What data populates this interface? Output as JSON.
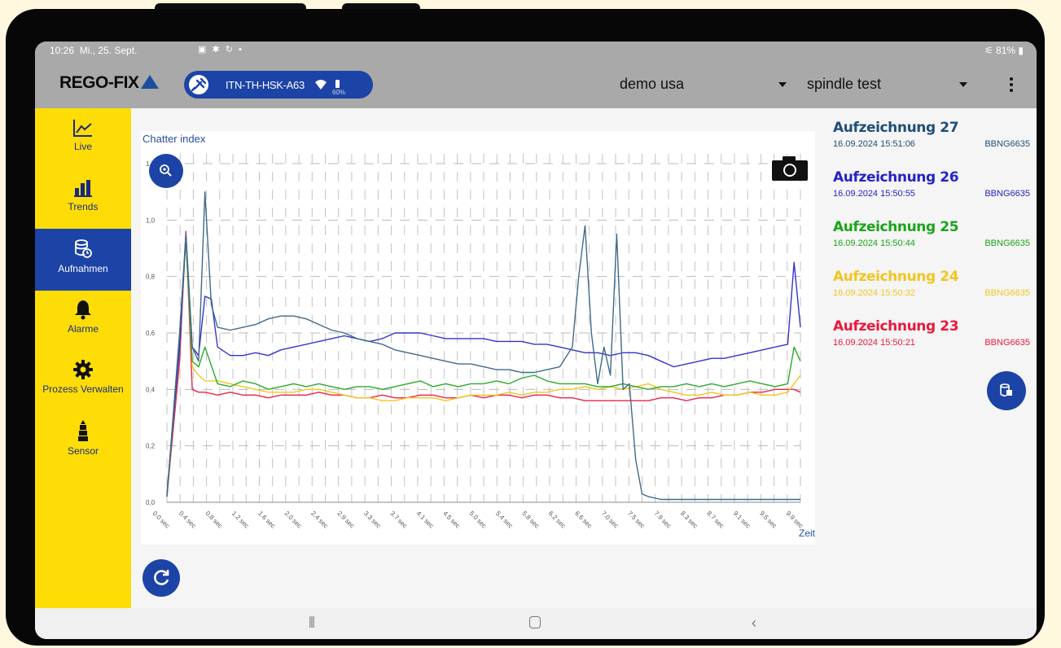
{
  "status_bar": {
    "time": "10:26",
    "date": "Mi., 25. Sept.",
    "right": "81%"
  },
  "app_bar": {
    "logo": "REGO-FIX",
    "device_name": "ITN-TH-HSK-A63",
    "battery_level": "60%",
    "dropdown_1": "demo usa",
    "dropdown_2": "spindle test"
  },
  "sidebar": {
    "items": [
      {
        "label": "Live",
        "icon": "line-chart-icon",
        "active": false
      },
      {
        "label": "Trends",
        "icon": "bar-chart-icon",
        "active": false
      },
      {
        "label": "Aufnahmen",
        "icon": "database-clock-icon",
        "active": true
      },
      {
        "label": "Alarme",
        "icon": "bell-icon",
        "active": false
      },
      {
        "label": "Prozess Verwalten",
        "icon": "gear-icon",
        "active": false
      },
      {
        "label": "Sensor",
        "icon": "sensor-icon",
        "active": false
      }
    ]
  },
  "recordings": [
    {
      "name": "Aufzeichnung 27",
      "date": "16.09.2024 15:51:06",
      "id": "BBNG6635",
      "color": "#1f4e79"
    },
    {
      "name": "Aufzeichnung 26",
      "date": "16.09.2024 15:50:55",
      "id": "BBNG6635",
      "color": "#2323c8"
    },
    {
      "name": "Aufzeichnung 25",
      "date": "16.09.2024 15:50:44",
      "id": "BBNG6635",
      "color": "#1aa41a"
    },
    {
      "name": "Aufzeichnung 24",
      "date": "16.09.2024 15:50:32",
      "id": "BBNG6635",
      "color": "#f2c61e"
    },
    {
      "name": "Aufzeichnung 23",
      "date": "16.09.2024 15:50:21",
      "id": "BBNG6635",
      "color": "#e8193c"
    }
  ],
  "chart_data": {
    "type": "line",
    "title": "Chatter index",
    "xlabel": "Zeit",
    "ylabel": "",
    "ylim": [
      0,
      1.2
    ],
    "yticks": [
      "0,0",
      "0,2",
      "0,4",
      "0,6",
      "0,8",
      "1,0",
      "1,2"
    ],
    "x_ticks": [
      "0.0 sec",
      "0.4 sec",
      "0.8 sec",
      "1.2 sec",
      "1.6 sec",
      "2.0 sec",
      "2.4 sec",
      "2.9 sec",
      "3.3 sec",
      "3.7 sec",
      "4.1 sec",
      "4.5 sec",
      "5.0 sec",
      "5.4 sec",
      "5.8 sec",
      "6.2 sec",
      "6.6 sec",
      "7.0 sec",
      "7.5 sec",
      "7.9 sec",
      "8.3 sec",
      "8.7 sec",
      "9.1 sec",
      "9.5 sec",
      "9.9 sec"
    ],
    "xlim": [
      0,
      10
    ],
    "grid": true,
    "series": [
      {
        "name": "Aufzeichnung 27",
        "color": "#3f6a8a",
        "x": [
          0,
          0.2,
          0.3,
          0.4,
          0.5,
          0.6,
          0.7,
          0.8,
          1.0,
          1.2,
          1.4,
          1.6,
          1.8,
          2.0,
          2.2,
          2.4,
          2.6,
          2.8,
          3.0,
          3.2,
          3.4,
          3.6,
          3.8,
          4.0,
          4.2,
          4.4,
          4.6,
          4.8,
          5.0,
          5.2,
          5.4,
          5.6,
          5.8,
          6.0,
          6.2,
          6.4,
          6.5,
          6.6,
          6.7,
          6.8,
          6.9,
          7.0,
          7.1,
          7.2,
          7.3,
          7.4,
          7.5,
          7.6,
          7.8,
          8.0,
          8.5,
          9.0,
          9.5,
          9.9,
          10
        ],
        "y": [
          0.02,
          0.6,
          0.95,
          0.55,
          0.5,
          1.1,
          0.7,
          0.62,
          0.61,
          0.62,
          0.63,
          0.65,
          0.66,
          0.66,
          0.65,
          0.63,
          0.61,
          0.6,
          0.58,
          0.57,
          0.56,
          0.54,
          0.53,
          0.52,
          0.51,
          0.5,
          0.49,
          0.49,
          0.48,
          0.47,
          0.47,
          0.46,
          0.46,
          0.47,
          0.48,
          0.55,
          0.8,
          0.98,
          0.6,
          0.42,
          0.55,
          0.45,
          0.95,
          0.4,
          0.42,
          0.15,
          0.03,
          0.02,
          0.01,
          0.01,
          0.01,
          0.01,
          0.01,
          0.01,
          0.01
        ]
      },
      {
        "name": "Aufzeichnung 26",
        "color": "#3434cc",
        "x": [
          0,
          0.2,
          0.3,
          0.4,
          0.5,
          0.6,
          0.7,
          0.8,
          1.0,
          1.2,
          1.4,
          1.6,
          1.8,
          2.0,
          2.2,
          2.4,
          2.6,
          2.8,
          3.0,
          3.2,
          3.4,
          3.6,
          3.8,
          4.0,
          4.2,
          4.4,
          4.6,
          4.8,
          5.0,
          5.2,
          5.4,
          5.6,
          5.8,
          6.0,
          6.2,
          6.4,
          6.6,
          6.8,
          7.0,
          7.2,
          7.4,
          7.6,
          7.8,
          8.0,
          8.2,
          8.4,
          8.6,
          8.8,
          9.0,
          9.2,
          9.4,
          9.6,
          9.8,
          9.9,
          10
        ],
        "y": [
          0.03,
          0.55,
          0.95,
          0.55,
          0.52,
          0.73,
          0.72,
          0.55,
          0.52,
          0.52,
          0.53,
          0.52,
          0.54,
          0.55,
          0.56,
          0.57,
          0.58,
          0.59,
          0.58,
          0.57,
          0.58,
          0.6,
          0.6,
          0.6,
          0.59,
          0.58,
          0.58,
          0.58,
          0.58,
          0.57,
          0.57,
          0.57,
          0.56,
          0.56,
          0.55,
          0.54,
          0.53,
          0.53,
          0.52,
          0.53,
          0.53,
          0.52,
          0.5,
          0.48,
          0.49,
          0.5,
          0.51,
          0.51,
          0.52,
          0.53,
          0.54,
          0.55,
          0.56,
          0.85,
          0.62
        ]
      },
      {
        "name": "Aufzeichnung 25",
        "color": "#2aaa2a",
        "x": [
          0,
          0.2,
          0.3,
          0.4,
          0.5,
          0.6,
          0.8,
          1.0,
          1.2,
          1.4,
          1.6,
          1.8,
          2.0,
          2.2,
          2.4,
          2.6,
          2.8,
          3.0,
          3.2,
          3.4,
          3.6,
          3.8,
          4.0,
          4.2,
          4.4,
          4.6,
          4.8,
          5.0,
          5.2,
          5.4,
          5.6,
          5.8,
          6.0,
          6.2,
          6.4,
          6.6,
          6.8,
          7.0,
          7.2,
          7.4,
          7.6,
          7.8,
          8.0,
          8.2,
          8.4,
          8.6,
          8.8,
          9.0,
          9.2,
          9.4,
          9.6,
          9.8,
          9.9,
          10
        ],
        "y": [
          0.02,
          0.6,
          0.93,
          0.5,
          0.48,
          0.55,
          0.42,
          0.41,
          0.43,
          0.42,
          0.4,
          0.41,
          0.42,
          0.41,
          0.42,
          0.41,
          0.4,
          0.41,
          0.41,
          0.4,
          0.41,
          0.42,
          0.43,
          0.41,
          0.42,
          0.41,
          0.42,
          0.42,
          0.43,
          0.42,
          0.44,
          0.45,
          0.43,
          0.42,
          0.42,
          0.42,
          0.41,
          0.41,
          0.42,
          0.41,
          0.4,
          0.41,
          0.41,
          0.42,
          0.41,
          0.42,
          0.41,
          0.42,
          0.43,
          0.42,
          0.41,
          0.42,
          0.55,
          0.5
        ]
      },
      {
        "name": "Aufzeichnung 24",
        "color": "#f2c61e",
        "x": [
          0,
          0.2,
          0.3,
          0.4,
          0.5,
          0.6,
          0.8,
          1.0,
          1.2,
          1.4,
          1.6,
          1.8,
          2.0,
          2.2,
          2.4,
          2.6,
          2.8,
          3.0,
          3.2,
          3.4,
          3.6,
          3.8,
          4.0,
          4.2,
          4.4,
          4.6,
          4.8,
          5.0,
          5.2,
          5.4,
          5.6,
          5.8,
          6.0,
          6.2,
          6.4,
          6.6,
          6.8,
          7.0,
          7.2,
          7.4,
          7.6,
          7.8,
          8.0,
          8.2,
          8.4,
          8.6,
          8.8,
          9.0,
          9.2,
          9.4,
          9.6,
          9.8,
          9.9,
          10
        ],
        "y": [
          0.02,
          0.55,
          0.93,
          0.48,
          0.45,
          0.43,
          0.43,
          0.42,
          0.41,
          0.4,
          0.39,
          0.39,
          0.39,
          0.4,
          0.4,
          0.39,
          0.38,
          0.37,
          0.37,
          0.36,
          0.36,
          0.37,
          0.37,
          0.37,
          0.36,
          0.37,
          0.38,
          0.38,
          0.38,
          0.39,
          0.38,
          0.39,
          0.39,
          0.4,
          0.4,
          0.41,
          0.4,
          0.41,
          0.4,
          0.41,
          0.42,
          0.4,
          0.39,
          0.38,
          0.38,
          0.39,
          0.38,
          0.38,
          0.39,
          0.38,
          0.38,
          0.39,
          0.42,
          0.45
        ]
      },
      {
        "name": "Aufzeichnung 23",
        "color": "#e8244a",
        "x": [
          0,
          0.2,
          0.3,
          0.4,
          0.5,
          0.6,
          0.8,
          1.0,
          1.2,
          1.4,
          1.6,
          1.8,
          2.0,
          2.2,
          2.4,
          2.6,
          2.8,
          3.0,
          3.2,
          3.4,
          3.6,
          3.8,
          4.0,
          4.2,
          4.4,
          4.6,
          4.8,
          5.0,
          5.2,
          5.4,
          5.6,
          5.8,
          6.0,
          6.2,
          6.4,
          6.6,
          6.8,
          7.0,
          7.2,
          7.4,
          7.6,
          7.8,
          8.0,
          8.2,
          8.4,
          8.6,
          8.8,
          9.0,
          9.2,
          9.4,
          9.6,
          9.8,
          9.9,
          10
        ],
        "y": [
          0.02,
          0.5,
          0.96,
          0.4,
          0.39,
          0.39,
          0.38,
          0.39,
          0.38,
          0.38,
          0.37,
          0.38,
          0.38,
          0.38,
          0.39,
          0.38,
          0.38,
          0.37,
          0.37,
          0.38,
          0.37,
          0.37,
          0.38,
          0.38,
          0.37,
          0.37,
          0.38,
          0.37,
          0.38,
          0.38,
          0.37,
          0.38,
          0.38,
          0.37,
          0.37,
          0.36,
          0.36,
          0.36,
          0.36,
          0.36,
          0.36,
          0.37,
          0.37,
          0.36,
          0.37,
          0.37,
          0.38,
          0.38,
          0.39,
          0.39,
          0.4,
          0.4,
          0.4,
          0.39
        ]
      }
    ]
  }
}
